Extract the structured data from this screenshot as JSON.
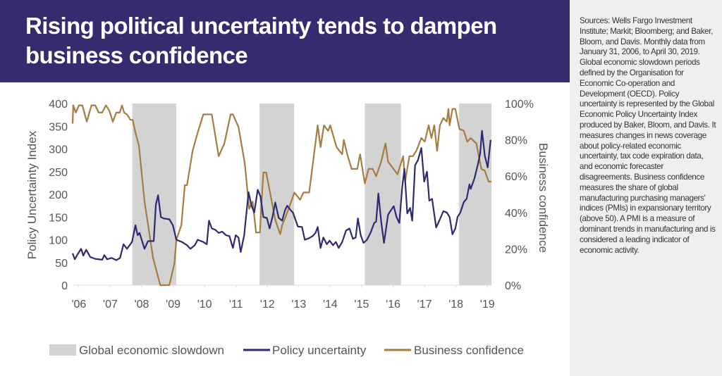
{
  "header": {
    "title": "Rising political uncertainty tends to dampen business confidence"
  },
  "sidebar": {
    "notes": "Sources: Wells Fargo Investment Institute; Markit; Bloomberg; and Baker, Bloom, and Davis. Monthly data from January 31, 2006, to April 30, 2019. Global economic slowdown periods defined by the Organisation for Economic Co-operation and Development (OECD). Policy uncertainty is represented by the Global Economic Policy Uncertainty Index produced by Baker, Bloom, and Davis. It measures changes in news coverage about policy-related economic uncertainty, tax code expiration data, and economic forecaster disagreements. Business confidence measures the share of global manufacturing purchasing managers' indices (PMIs) in expansionary territory (above 50). A PMI is a measure of dominant trends in manufacturing and is considered a leading indicator of economic activity."
  },
  "colors": {
    "header_bg": "#352b6e",
    "policy": "#2e2a72",
    "business": "#a57c43",
    "slowdown": "#d3d3d3",
    "sidebar_bg": "#efefef"
  },
  "chart_data": {
    "type": "line",
    "title": "",
    "ylabel": "Policy Uncertainty Index",
    "y2label": "Business confidence",
    "ylim": [
      0,
      400
    ],
    "y2lim": [
      0,
      100
    ],
    "yticks": [
      "400",
      "350",
      "300",
      "250",
      "200",
      "150",
      "100",
      "50",
      "0"
    ],
    "y2ticks": [
      "100%",
      "80%",
      "60%",
      "40%",
      "20%",
      "0%"
    ],
    "xlim": [
      2006.0,
      2019.33
    ],
    "xtick_labels": [
      "'06",
      "'07",
      "'08",
      "'09",
      "'10",
      "'11",
      "'12",
      "'13",
      "'14",
      "'15",
      "'16",
      "'17",
      "'18",
      "'19"
    ],
    "grid": false,
    "legend_position": "bottom",
    "legend": [
      "Global economic slowdown",
      "Policy uncertainty",
      "Business confidence"
    ],
    "slowdown_periods": [
      [
        2007.9,
        2009.3
      ],
      [
        2011.95,
        2013.05
      ],
      [
        2015.3,
        2016.45
      ],
      [
        2018.3,
        2019.33
      ]
    ],
    "series": [
      {
        "name": "Policy uncertainty",
        "axis": "left",
        "points": [
          [
            2006.0,
            70
          ],
          [
            2006.07,
            57
          ],
          [
            2006.16,
            68
          ],
          [
            2006.27,
            80
          ],
          [
            2006.34,
            65
          ],
          [
            2006.43,
            78
          ],
          [
            2006.56,
            62
          ],
          [
            2006.72,
            58
          ],
          [
            2006.94,
            56
          ],
          [
            2007.01,
            66
          ],
          [
            2007.1,
            57
          ],
          [
            2007.24,
            60
          ],
          [
            2007.39,
            55
          ],
          [
            2007.51,
            60
          ],
          [
            2007.62,
            90
          ],
          [
            2007.73,
            80
          ],
          [
            2007.89,
            95
          ],
          [
            2008.0,
            132
          ],
          [
            2008.07,
            110
          ],
          [
            2008.13,
            115
          ],
          [
            2008.29,
            80
          ],
          [
            2008.4,
            97
          ],
          [
            2008.58,
            97
          ],
          [
            2008.65,
            178
          ],
          [
            2008.72,
            198
          ],
          [
            2008.81,
            150
          ],
          [
            2008.9,
            147
          ],
          [
            2009.08,
            145
          ],
          [
            2009.19,
            132
          ],
          [
            2009.3,
            100
          ],
          [
            2009.48,
            95
          ],
          [
            2009.64,
            88
          ],
          [
            2009.75,
            80
          ],
          [
            2009.89,
            88
          ],
          [
            2009.98,
            100
          ],
          [
            2010.16,
            95
          ],
          [
            2010.27,
            90
          ],
          [
            2010.34,
            142
          ],
          [
            2010.43,
            125
          ],
          [
            2010.54,
            122
          ],
          [
            2010.65,
            115
          ],
          [
            2010.76,
            118
          ],
          [
            2010.88,
            110
          ],
          [
            2010.99,
            108
          ],
          [
            2011.1,
            82
          ],
          [
            2011.19,
            110
          ],
          [
            2011.28,
            105
          ],
          [
            2011.35,
            73
          ],
          [
            2011.46,
            110
          ],
          [
            2011.6,
            205
          ],
          [
            2011.69,
            175
          ],
          [
            2011.78,
            160
          ],
          [
            2011.89,
            210
          ],
          [
            2011.98,
            195
          ],
          [
            2012.07,
            150
          ],
          [
            2012.18,
            148
          ],
          [
            2012.27,
            125
          ],
          [
            2012.36,
            150
          ],
          [
            2012.45,
            182
          ],
          [
            2012.56,
            148
          ],
          [
            2012.67,
            142
          ],
          [
            2012.76,
            165
          ],
          [
            2012.83,
            175
          ],
          [
            2012.94,
            165
          ],
          [
            2013.01,
            160
          ],
          [
            2013.17,
            129
          ],
          [
            2013.3,
            128
          ],
          [
            2013.39,
            100
          ],
          [
            2013.51,
            103
          ],
          [
            2013.64,
            108
          ],
          [
            2013.73,
            115
          ],
          [
            2013.8,
            128
          ],
          [
            2013.89,
            82
          ],
          [
            2013.98,
            105
          ],
          [
            2014.09,
            90
          ],
          [
            2014.18,
            98
          ],
          [
            2014.29,
            88
          ],
          [
            2014.38,
            95
          ],
          [
            2014.47,
            82
          ],
          [
            2014.58,
            95
          ],
          [
            2014.7,
            120
          ],
          [
            2014.81,
            125
          ],
          [
            2014.92,
            102
          ],
          [
            2015.01,
            105
          ],
          [
            2015.08,
            147
          ],
          [
            2015.17,
            110
          ],
          [
            2015.26,
            93
          ],
          [
            2015.37,
            100
          ],
          [
            2015.48,
            115
          ],
          [
            2015.6,
            137
          ],
          [
            2015.66,
            140
          ],
          [
            2015.73,
            202
          ],
          [
            2015.82,
            140
          ],
          [
            2015.91,
            93
          ],
          [
            2016.04,
            155
          ],
          [
            2016.13,
            165
          ],
          [
            2016.22,
            174
          ],
          [
            2016.31,
            150
          ],
          [
            2016.4,
            137
          ],
          [
            2016.49,
            215
          ],
          [
            2016.56,
            256
          ],
          [
            2016.65,
            158
          ],
          [
            2016.74,
            170
          ],
          [
            2016.81,
            142
          ],
          [
            2016.9,
            264
          ],
          [
            2016.99,
            275
          ],
          [
            2017.1,
            302
          ],
          [
            2017.19,
            228
          ],
          [
            2017.28,
            250
          ],
          [
            2017.35,
            186
          ],
          [
            2017.44,
            190
          ],
          [
            2017.57,
            127
          ],
          [
            2017.69,
            145
          ],
          [
            2017.8,
            163
          ],
          [
            2017.91,
            160
          ],
          [
            2018.0,
            150
          ],
          [
            2018.09,
            112
          ],
          [
            2018.18,
            125
          ],
          [
            2018.25,
            150
          ],
          [
            2018.34,
            160
          ],
          [
            2018.45,
            183
          ],
          [
            2018.54,
            190
          ],
          [
            2018.63,
            222
          ],
          [
            2018.67,
            212
          ],
          [
            2018.79,
            235
          ],
          [
            2018.9,
            266
          ],
          [
            2018.97,
            290
          ],
          [
            2019.03,
            340
          ],
          [
            2019.12,
            285
          ],
          [
            2019.21,
            259
          ],
          [
            2019.3,
            318
          ],
          [
            2019.33,
            318
          ]
        ]
      },
      {
        "name": "Business confidence",
        "axis": "right",
        "points": [
          [
            2006.0,
            89
          ],
          [
            2006.02,
            99
          ],
          [
            2006.1,
            95
          ],
          [
            2006.2,
            99
          ],
          [
            2006.31,
            99
          ],
          [
            2006.45,
            90
          ],
          [
            2006.6,
            99
          ],
          [
            2006.72,
            99
          ],
          [
            2006.83,
            95
          ],
          [
            2006.94,
            95
          ],
          [
            2007.06,
            99
          ],
          [
            2007.17,
            96
          ],
          [
            2007.28,
            90
          ],
          [
            2007.39,
            95
          ],
          [
            2007.5,
            95
          ],
          [
            2007.57,
            99
          ],
          [
            2007.64,
            95
          ],
          [
            2007.73,
            94
          ],
          [
            2007.84,
            91
          ],
          [
            2007.91,
            91
          ],
          [
            2008.0,
            84
          ],
          [
            2008.11,
            77
          ],
          [
            2008.29,
            46
          ],
          [
            2008.56,
            15
          ],
          [
            2008.79,
            0
          ],
          [
            2009.08,
            0
          ],
          [
            2009.24,
            12
          ],
          [
            2009.3,
            25
          ],
          [
            2009.46,
            33
          ],
          [
            2009.57,
            55
          ],
          [
            2009.64,
            55
          ],
          [
            2009.82,
            74
          ],
          [
            2009.98,
            84
          ],
          [
            2010.16,
            94
          ],
          [
            2010.43,
            94
          ],
          [
            2010.65,
            71
          ],
          [
            2010.83,
            78
          ],
          [
            2011.03,
            94
          ],
          [
            2011.1,
            94
          ],
          [
            2011.28,
            87
          ],
          [
            2011.48,
            67
          ],
          [
            2011.62,
            42
          ],
          [
            2011.73,
            46
          ],
          [
            2011.84,
            29
          ],
          [
            2011.96,
            29
          ],
          [
            2012.07,
            62
          ],
          [
            2012.16,
            62
          ],
          [
            2012.45,
            36
          ],
          [
            2012.61,
            28
          ],
          [
            2012.67,
            33
          ],
          [
            2012.83,
            40
          ],
          [
            2013.06,
            51
          ],
          [
            2013.24,
            47
          ],
          [
            2013.35,
            51
          ],
          [
            2013.53,
            51
          ],
          [
            2013.8,
            88
          ],
          [
            2013.89,
            76
          ],
          [
            2014.0,
            88
          ],
          [
            2014.13,
            85
          ],
          [
            2014.2,
            88
          ],
          [
            2014.4,
            76
          ],
          [
            2014.58,
            72
          ],
          [
            2014.63,
            80
          ],
          [
            2014.74,
            72
          ],
          [
            2014.88,
            64
          ],
          [
            2015.06,
            64
          ],
          [
            2015.15,
            72
          ],
          [
            2015.3,
            56
          ],
          [
            2015.42,
            64
          ],
          [
            2015.55,
            64
          ],
          [
            2015.66,
            60
          ],
          [
            2015.82,
            68
          ],
          [
            2015.96,
            78
          ],
          [
            2016.04,
            68
          ],
          [
            2016.34,
            61
          ],
          [
            2016.52,
            71
          ],
          [
            2016.58,
            57
          ],
          [
            2016.72,
            71
          ],
          [
            2016.83,
            71
          ],
          [
            2016.94,
            74
          ],
          [
            2017.1,
            81
          ],
          [
            2017.21,
            79
          ],
          [
            2017.33,
            88
          ],
          [
            2017.42,
            81
          ],
          [
            2017.51,
            88
          ],
          [
            2017.6,
            74
          ],
          [
            2017.69,
            88
          ],
          [
            2017.8,
            92
          ],
          [
            2017.91,
            90
          ],
          [
            2017.96,
            97
          ],
          [
            2018.0,
            88
          ],
          [
            2018.09,
            97
          ],
          [
            2018.18,
            97
          ],
          [
            2018.31,
            86
          ],
          [
            2018.45,
            85
          ],
          [
            2018.56,
            79
          ],
          [
            2018.67,
            81
          ],
          [
            2018.79,
            79
          ],
          [
            2018.85,
            78
          ],
          [
            2019.01,
            64
          ],
          [
            2019.12,
            63
          ],
          [
            2019.24,
            57
          ],
          [
            2019.33,
            57
          ]
        ]
      }
    ]
  }
}
